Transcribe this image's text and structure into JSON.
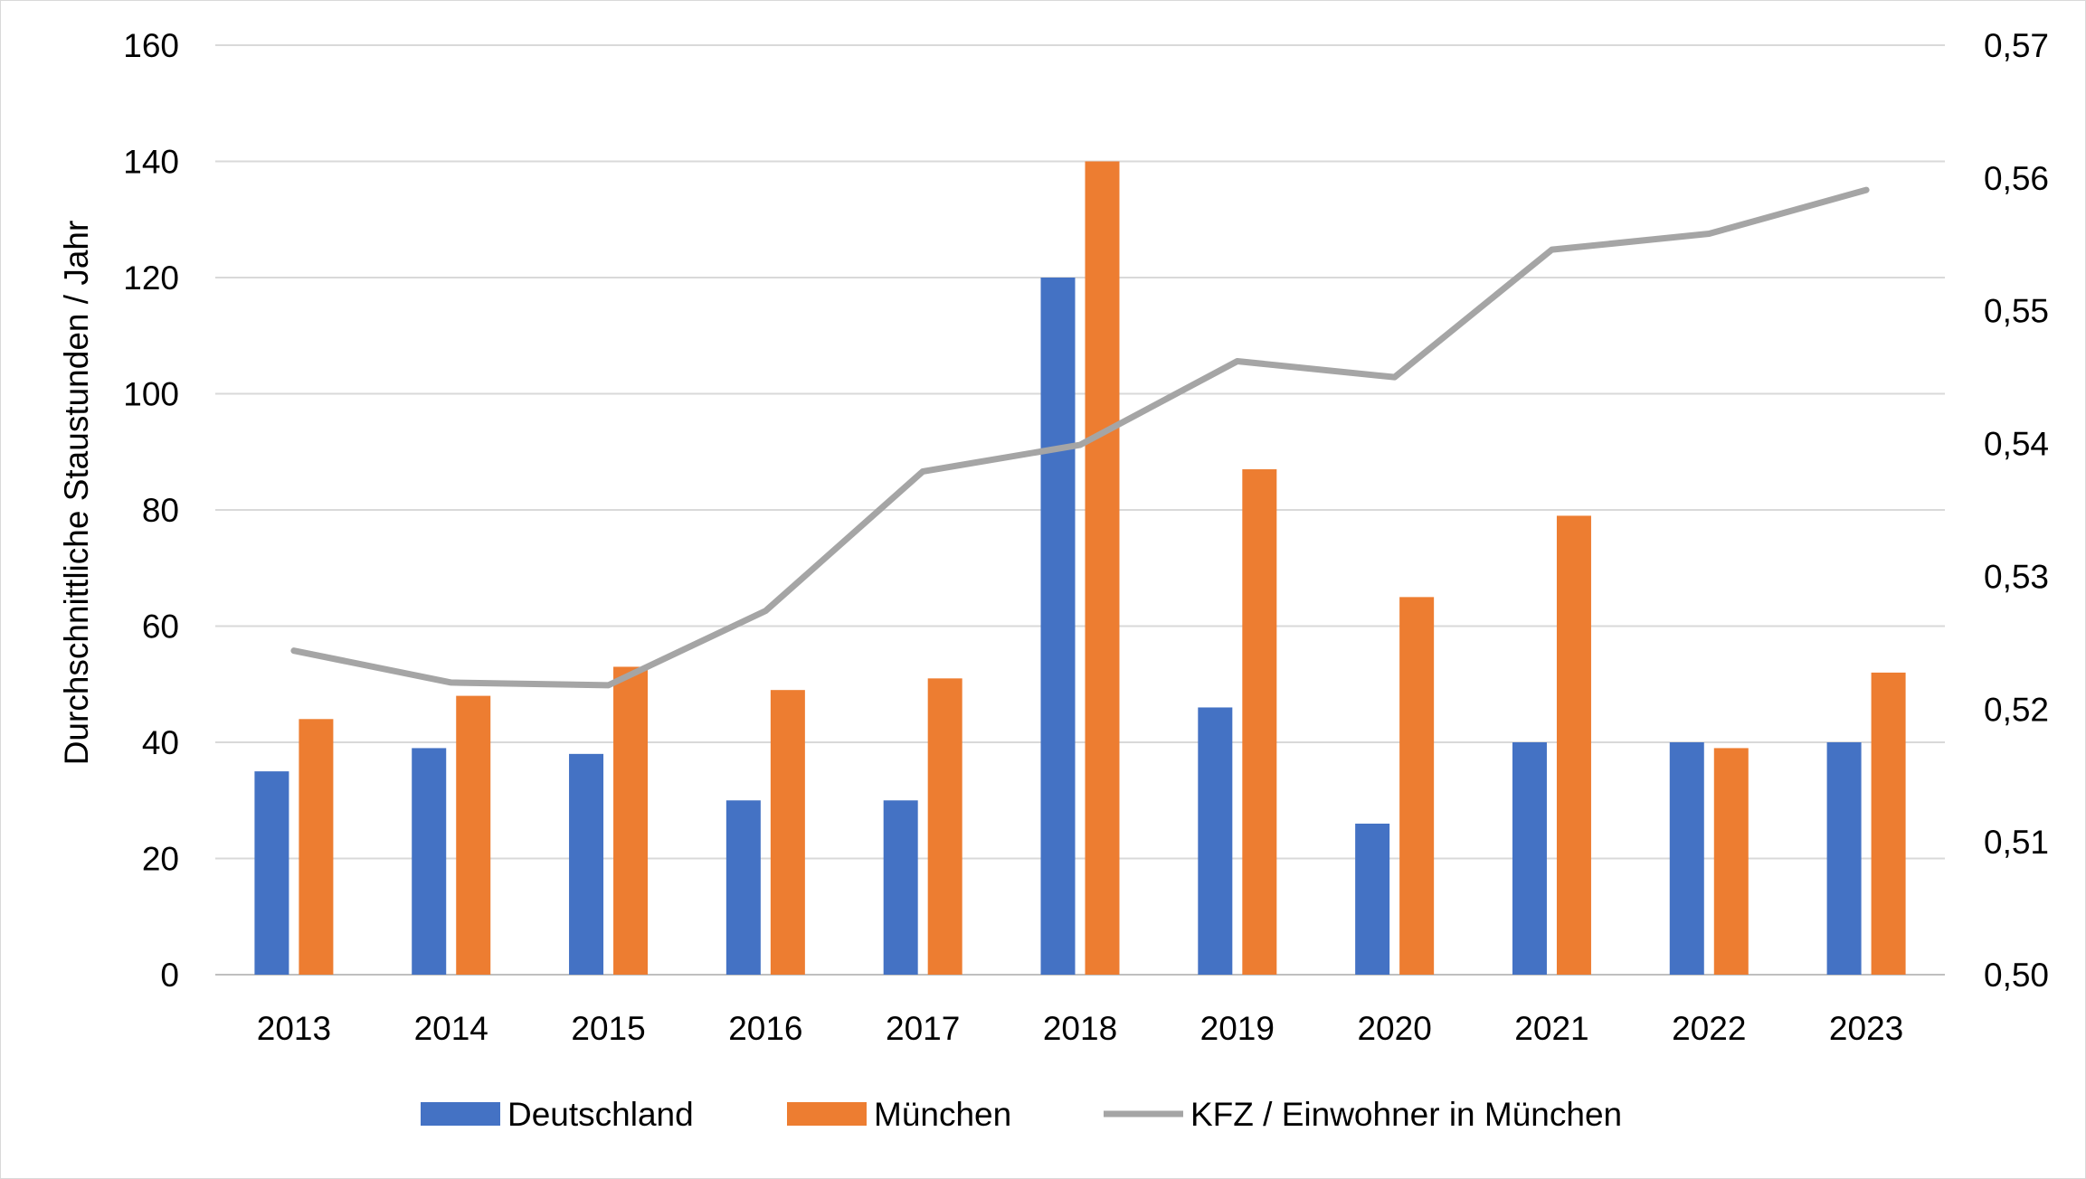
{
  "chart_data": {
    "type": "bar",
    "title": "",
    "xlabel": "",
    "ylabel": "Durchschnittliche Staustunden / Jahr",
    "categories": [
      "2013",
      "2014",
      "2015",
      "2016",
      "2017",
      "2018",
      "2019",
      "2020",
      "2021",
      "2022",
      "2023"
    ],
    "ylim": [
      0,
      160
    ],
    "yticks": [
      "0",
      "20",
      "40",
      "60",
      "80",
      "100",
      "120",
      "140",
      "160"
    ],
    "y2lim": [
      0.5,
      0.57
    ],
    "y2ticks": [
      "0,50",
      "0,51",
      "0,52",
      "0,53",
      "0,54",
      "0,55",
      "0,56",
      "0,57"
    ],
    "grid": true,
    "legend_position": "bottom",
    "series": [
      {
        "name": "Deutschland",
        "type": "bar",
        "axis": "left",
        "color": "#4472c4",
        "values": [
          35,
          39,
          38,
          30,
          30,
          120,
          46,
          26,
          40,
          40,
          40
        ]
      },
      {
        "name": "München",
        "type": "bar",
        "axis": "left",
        "color": "#ed7d31",
        "values": [
          44,
          48,
          53,
          49,
          51,
          140,
          87,
          65,
          79,
          39,
          52
        ]
      },
      {
        "name": "KFZ / Einwohner in München",
        "type": "line",
        "axis": "right",
        "color": "#a5a5a5",
        "values": [
          0.5244,
          0.522,
          0.5218,
          0.5274,
          0.5379,
          0.5399,
          0.5462,
          0.545,
          0.5546,
          0.5558,
          0.5591
        ]
      }
    ]
  }
}
